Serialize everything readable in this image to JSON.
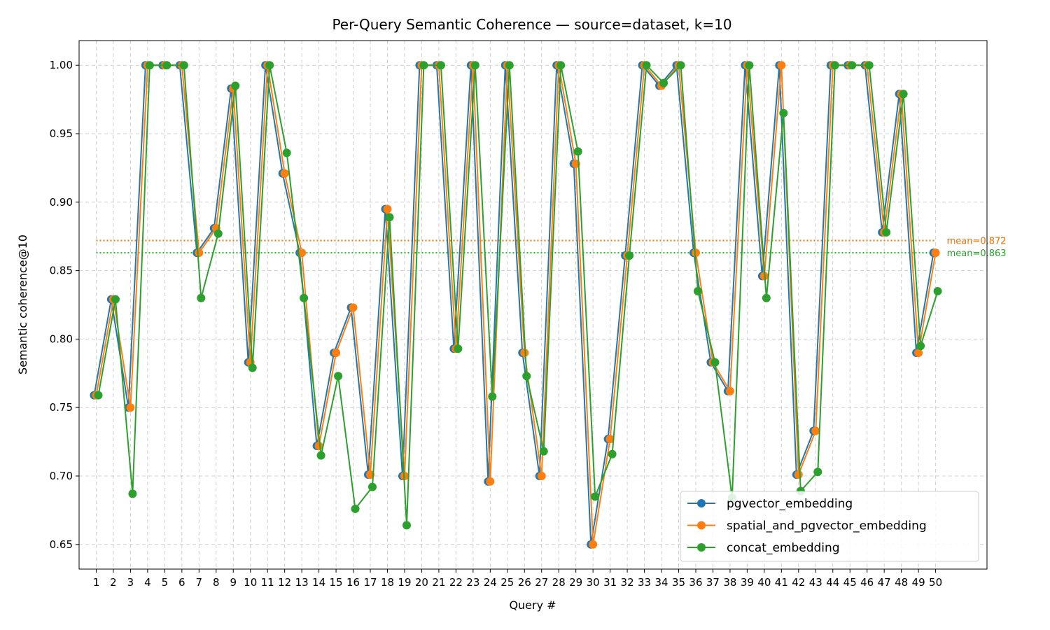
{
  "chart_data": {
    "type": "line",
    "title": "Per-Query Semantic Coherence — source=dataset, k=10",
    "xlabel": "Query #",
    "ylabel": "Semantic coherence@10",
    "x": [
      1,
      2,
      3,
      4,
      5,
      6,
      7,
      8,
      9,
      10,
      11,
      12,
      13,
      14,
      15,
      16,
      17,
      18,
      19,
      20,
      21,
      22,
      23,
      24,
      25,
      26,
      27,
      28,
      29,
      30,
      31,
      32,
      33,
      34,
      35,
      36,
      37,
      38,
      39,
      40,
      41,
      42,
      43,
      44,
      45,
      46,
      47,
      48,
      49,
      50
    ],
    "xlim": [
      0,
      53
    ],
    "ylim": [
      0.632,
      1.018
    ],
    "yticks": [
      0.65,
      0.7,
      0.75,
      0.8,
      0.85,
      0.9,
      0.95,
      1.0
    ],
    "ytick_labels": [
      "0.65",
      "0.70",
      "0.75",
      "0.80",
      "0.85",
      "0.90",
      "0.95",
      "1.00"
    ],
    "grid": true,
    "legend_position": "lower-right",
    "series": [
      {
        "name": "pgvector_embedding",
        "color": "#1f77b4",
        "values": [
          0.759,
          0.829,
          0.75,
          1.0,
          1.0,
          1.0,
          0.863,
          0.881,
          0.983,
          0.783,
          1.0,
          0.921,
          0.863,
          0.722,
          0.79,
          0.823,
          0.701,
          0.895,
          0.7,
          1.0,
          1.0,
          0.793,
          1.0,
          0.696,
          1.0,
          0.79,
          0.7,
          1.0,
          0.928,
          0.65,
          0.727,
          0.861,
          1.0,
          0.985,
          1.0,
          0.863,
          0.783,
          0.762,
          1.0,
          0.846,
          1.0,
          0.701,
          0.733,
          1.0,
          1.0,
          1.0,
          0.878,
          0.979,
          0.79,
          0.863
        ],
        "mean_label": "mean=0.872",
        "mean": 0.872
      },
      {
        "name": "spatial_and_pgvector_embedding",
        "color": "#ff7f0e",
        "values": [
          0.759,
          0.829,
          0.75,
          1.0,
          1.0,
          1.0,
          0.863,
          0.881,
          0.983,
          0.783,
          1.0,
          0.921,
          0.863,
          0.722,
          0.79,
          0.823,
          0.701,
          0.895,
          0.7,
          1.0,
          1.0,
          0.793,
          1.0,
          0.696,
          1.0,
          0.79,
          0.7,
          1.0,
          0.928,
          0.65,
          0.727,
          0.861,
          1.0,
          0.985,
          1.0,
          0.863,
          0.783,
          0.762,
          1.0,
          0.846,
          1.0,
          0.701,
          0.733,
          1.0,
          1.0,
          1.0,
          0.878,
          0.979,
          0.79,
          0.863
        ],
        "mean_label": "mean=0.872",
        "mean": 0.872
      },
      {
        "name": "concat_embedding",
        "color": "#2ca02c",
        "values": [
          0.759,
          0.829,
          0.687,
          1.0,
          1.0,
          1.0,
          0.83,
          0.877,
          0.985,
          0.779,
          1.0,
          0.936,
          0.83,
          0.715,
          0.773,
          0.676,
          0.692,
          0.889,
          0.664,
          1.0,
          1.0,
          0.793,
          1.0,
          0.758,
          1.0,
          0.773,
          0.718,
          1.0,
          0.937,
          0.685,
          0.716,
          0.861,
          1.0,
          0.987,
          1.0,
          0.835,
          0.783,
          0.684,
          1.0,
          0.83,
          0.965,
          0.689,
          0.703,
          1.0,
          1.0,
          1.0,
          0.878,
          0.979,
          0.795,
          0.835
        ],
        "mean_label": "mean=0.863",
        "mean": 0.863
      }
    ]
  }
}
